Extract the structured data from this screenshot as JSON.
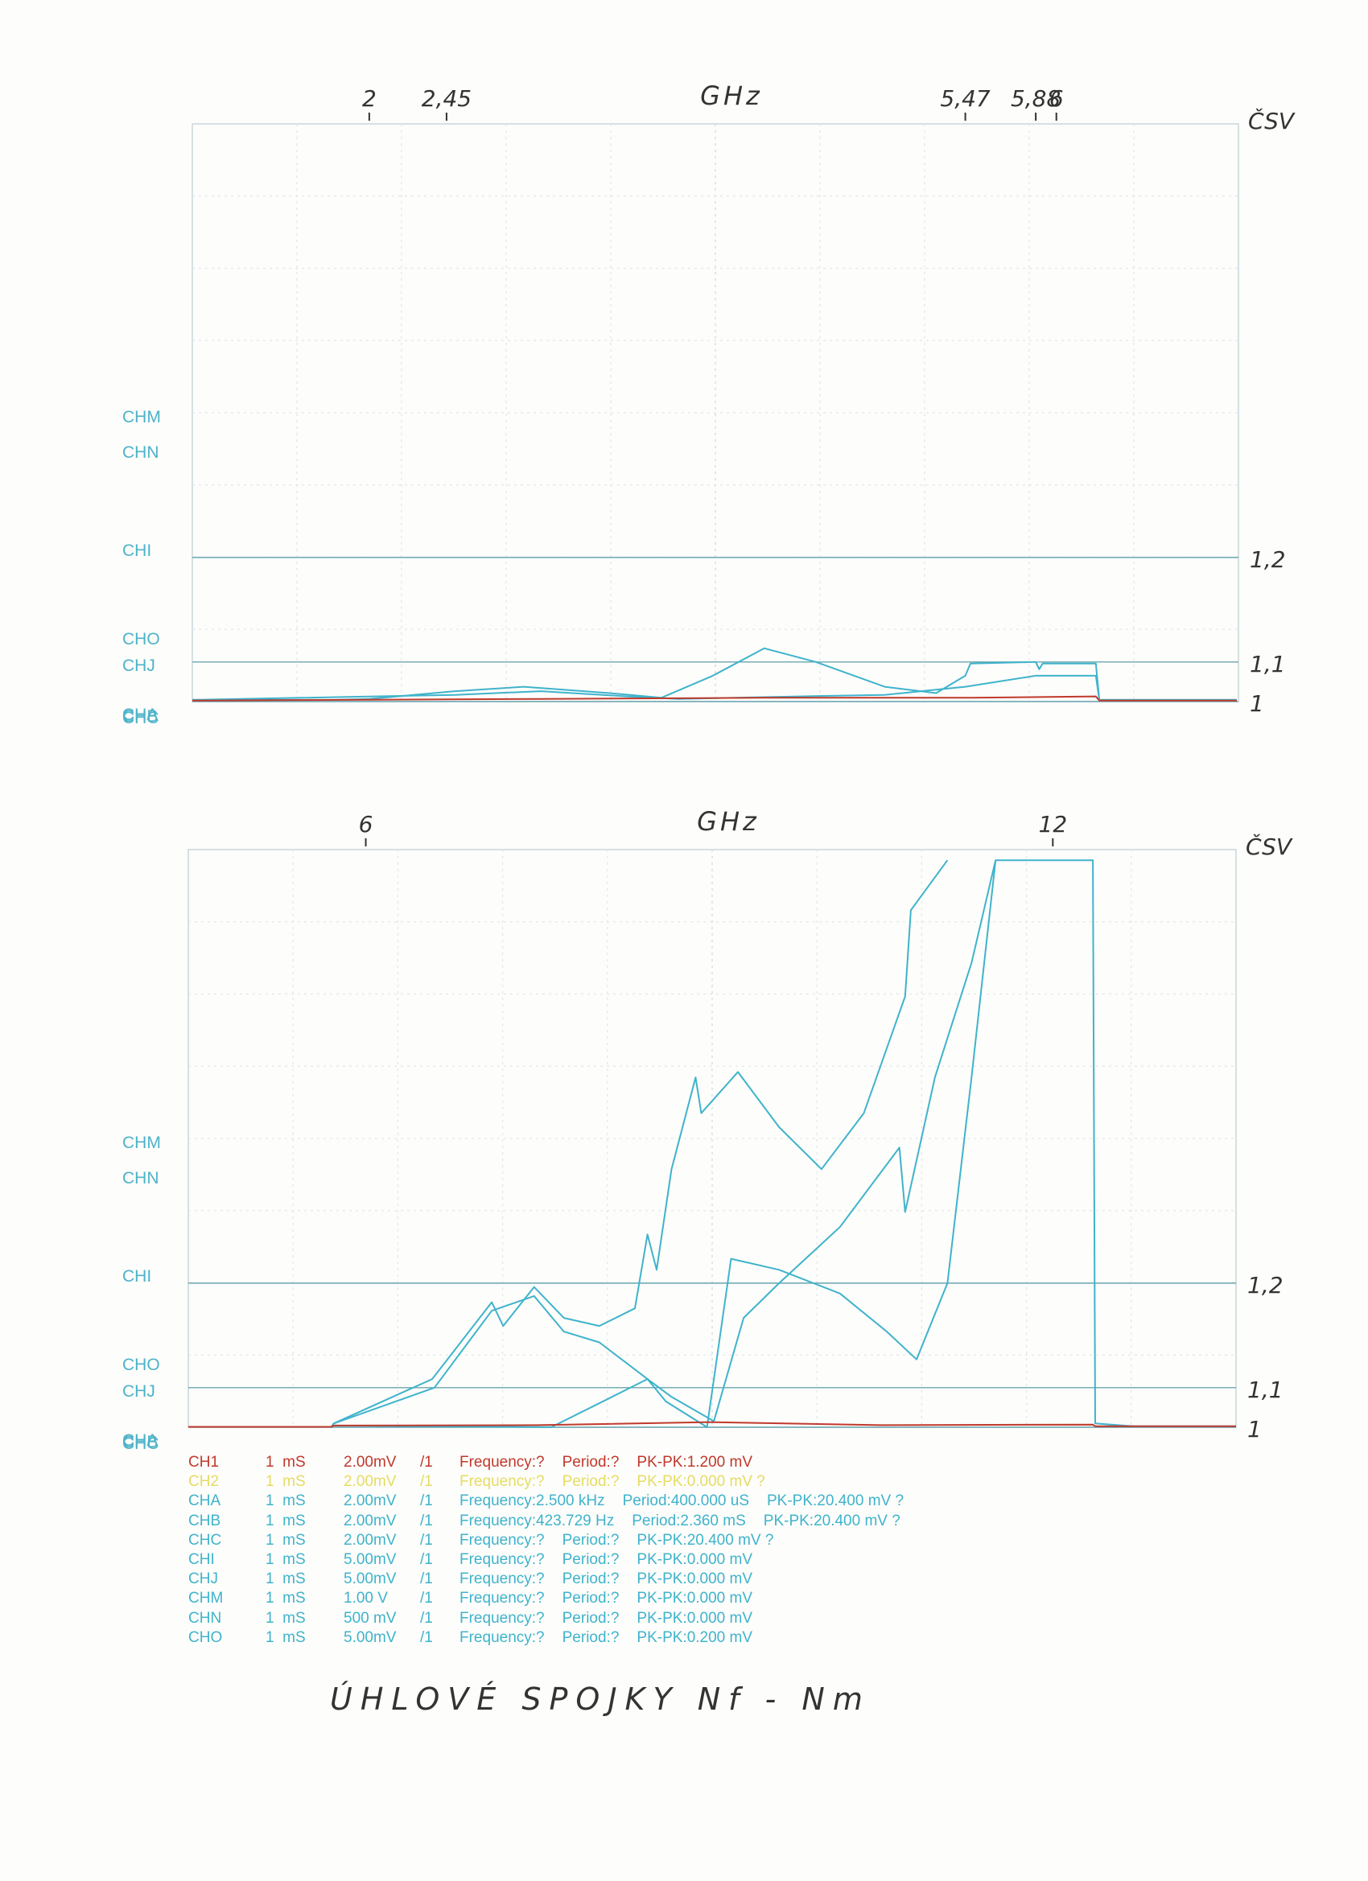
{
  "chart_data": [
    {
      "type": "line",
      "x_label": "GHz",
      "y_label": "ČSV",
      "y_scale": "reflected-power",
      "xlim": [
        0.97,
        7.06
      ],
      "xticks": [
        2,
        {
          "value": 2.45,
          "label": "2,45"
        },
        {
          "value": 5.47,
          "label": "5,47"
        },
        {
          "value": 5.88,
          "label": "5,88"
        },
        6
      ],
      "ylim": [
        1,
        1.445
      ],
      "yticks": [
        1,
        {
          "value": 1.1,
          "label": "1,1"
        },
        {
          "value": 1.2,
          "label": "1,2"
        }
      ],
      "channel_labels": [
        "CHM",
        "CHN",
        "CHI",
        "CHO",
        "CHJ",
        "CHA",
        "CHB",
        "CHC"
      ],
      "series": [
        {
          "color": "#3fb3cc",
          "x": [
            0.97,
            1.8,
            2.0,
            2.5,
            2.9,
            3.4,
            3.7,
            4.0,
            4.3,
            4.6,
            5.0,
            5.3,
            5.47,
            5.5,
            5.88,
            5.9,
            5.92,
            6.23,
            6.25,
            7.05
          ],
          "values": [
            1.02,
            1.02,
            1.025,
            1.05,
            1.06,
            1.045,
            1.03,
            1.08,
            1.117,
            1.1,
            1.06,
            1.045,
            1.08,
            1.098,
            1.1,
            1.09,
            1.098,
            1.098,
            1.02,
            1.02
          ]
        },
        {
          "color": "#3fb3cc",
          "x": [
            0.97,
            2.5,
            3.0,
            3.5,
            3.8,
            4.5,
            5.0,
            5.47,
            5.88,
            6.23,
            6.25,
            7.05
          ],
          "values": [
            1.02,
            1.04,
            1.05,
            1.035,
            1.025,
            1.035,
            1.04,
            1.06,
            1.08,
            1.08,
            1.02,
            1.02
          ]
        },
        {
          "color": "#c0392b",
          "x": [
            0.97,
            3.0,
            4.3,
            5.5,
            6.23,
            6.25,
            7.05
          ],
          "values": [
            1.015,
            1.025,
            1.03,
            1.03,
            1.035,
            1.015,
            1.015
          ]
        }
      ]
    },
    {
      "type": "line",
      "x_label": "GHz",
      "y_label": "ČSV",
      "y_scale": "reflected-power",
      "xlim": [
        4.45,
        13.6
      ],
      "xticks": [
        6,
        12
      ],
      "ylim": [
        1,
        1.445
      ],
      "yticks": [
        1,
        {
          "value": 1.1,
          "label": "1,1"
        },
        {
          "value": 1.2,
          "label": "1,2"
        }
      ],
      "channel_labels": [
        "CHM",
        "CHN",
        "CHI",
        "CHO",
        "CHJ",
        "CHA",
        "CHB",
        "CHC"
      ],
      "series": [
        {
          "color": "#3fb3cc",
          "x": [
            4.45,
            5.7,
            5.72,
            6.58,
            7.1,
            7.2,
            7.47,
            7.73,
            8.04,
            8.35,
            8.46,
            8.54,
            8.67,
            8.88,
            8.93,
            9.25,
            9.61,
            9.98,
            10.35,
            10.71,
            10.76,
            11.08
          ],
          "values": [
            1.01,
            1.01,
            1.03,
            1.111,
            1.185,
            1.165,
            1.197,
            1.172,
            1.165,
            1.18,
            1.235,
            1.21,
            1.277,
            1.33,
            1.31,
            1.333,
            1.302,
            1.277,
            1.31,
            1.373,
            1.416,
            1.44
          ]
        },
        {
          "color": "#3fb3cc",
          "x": [
            4.45,
            5.7,
            5.72,
            6.6,
            7.1,
            7.47,
            7.73,
            8.04,
            8.46,
            8.67,
            9.04,
            9.3,
            9.61,
            10.14,
            10.66,
            10.71,
            10.97,
            11.29,
            11.5,
            12.35,
            12.37,
            12.7,
            13.6
          ],
          "values": [
            1.01,
            1.01,
            1.03,
            1.1,
            1.178,
            1.19,
            1.16,
            1.15,
            1.111,
            1.087,
            1.038,
            1.172,
            1.2,
            1.24,
            1.29,
            1.25,
            1.33,
            1.39,
            1.44,
            1.44,
            1.03,
            1.015,
            1.015
          ]
        },
        {
          "color": "#3fb3cc",
          "x": [
            4.45,
            5.7,
            5.72,
            7.62,
            8.15,
            8.46,
            8.62,
            8.98,
            9.19,
            9.61,
            10.14,
            10.55,
            10.81,
            11.08,
            11.29,
            11.5
          ],
          "values": [
            1.01,
            1.01,
            1.02,
            1.005,
            1.087,
            1.111,
            1.08,
            1.005,
            1.218,
            1.21,
            1.192,
            1.16,
            1.133,
            1.2,
            1.33,
            1.44
          ]
        },
        {
          "color": "#c0392b",
          "x": [
            4.45,
            5.7,
            5.72,
            7.5,
            9.0,
            10.5,
            12.35,
            12.37,
            13.6
          ],
          "values": [
            1.01,
            1.01,
            1.02,
            1.022,
            1.035,
            1.022,
            1.025,
            1.015,
            1.015
          ]
        }
      ]
    }
  ],
  "channel_table": {
    "colors": [
      "#c0392b",
      "#e6dc62",
      "#3fb3cc",
      "#3fb3cc",
      "#3fb3cc",
      "#3fb3cc",
      "#3fb3cc",
      "#3fb3cc",
      "#3fb3cc",
      "#3fb3cc"
    ],
    "rows": [
      [
        "CH1",
        "1  mS",
        "2.00mV",
        "/1",
        "Frequency:?",
        "Period:?",
        "PK-PK:1.200 mV"
      ],
      [
        "CH2",
        "1  mS",
        "2.00mV",
        "/1",
        "Frequency:?",
        "Period:?",
        "PK-PK:0.000 mV ?"
      ],
      [
        "CHA",
        "1  mS",
        "2.00mV",
        "/1",
        "Frequency:2.500 kHz",
        "Period:400.000 uS",
        "PK-PK:20.400 mV ?"
      ],
      [
        "CHB",
        "1  mS",
        "2.00mV",
        "/1",
        "Frequency:423.729 Hz",
        "Period:2.360 mS",
        "PK-PK:20.400 mV ?"
      ],
      [
        "CHC",
        "1  mS",
        "2.00mV",
        "/1",
        "Frequency:?",
        "Period:?",
        "PK-PK:20.400 mV ?"
      ],
      [
        "CHI",
        "1  mS",
        "5.00mV",
        "/1",
        "Frequency:?",
        "Period:?",
        "PK-PK:0.000 mV"
      ],
      [
        "CHJ",
        "1  mS",
        "5.00mV",
        "/1",
        "Frequency:?",
        "Period:?",
        "PK-PK:0.000 mV"
      ],
      [
        "CHM",
        "1  mS",
        "1.00 V",
        "/1",
        "Frequency:?",
        "Period:?",
        "PK-PK:0.000 mV"
      ],
      [
        "CHN",
        "1  mS",
        "500 mV",
        "/1",
        "Frequency:?",
        "Period:?",
        "PK-PK:0.000 mV"
      ],
      [
        "CHO",
        "1  mS",
        "5.00mV",
        "/1",
        "Frequency:?",
        "Period:?",
        "PK-PK:0.200 mV"
      ]
    ]
  },
  "caption": "ÚHLOVÉ SPOJKY Nf - Nm"
}
